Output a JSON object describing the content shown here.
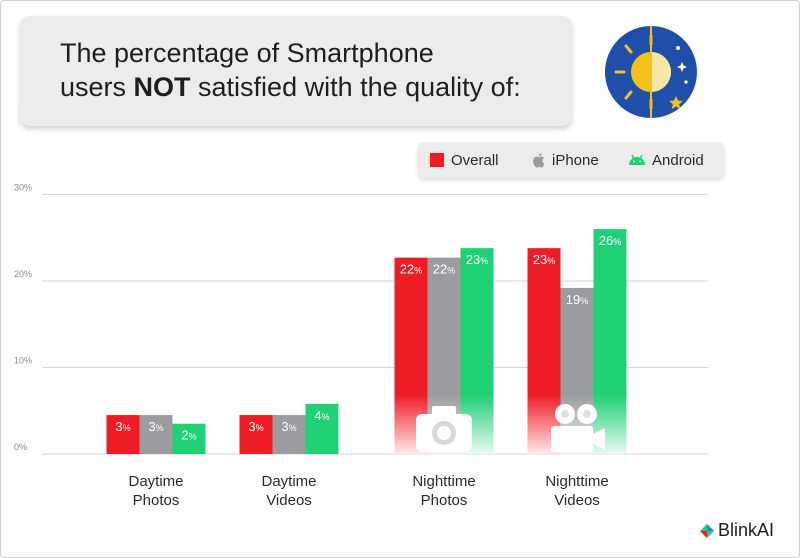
{
  "title": {
    "line1": "The percentage of Smartphone",
    "line2_bold": "NOT",
    "line2_pre": "users ",
    "line2_post": " satisfied with the quality of:"
  },
  "legend": [
    {
      "label": "Overall",
      "color": "#ee1c25",
      "icon": "square"
    },
    {
      "label": "iPhone",
      "color": "#9a9c9f",
      "icon": "apple-icon"
    },
    {
      "label": "Android",
      "color": "#20d075",
      "icon": "android-icon"
    }
  ],
  "chart_data": {
    "type": "bar",
    "categories": [
      "Daytime Photos",
      "Daytime Videos",
      "Nighttime Photos",
      "Nighttime Videos"
    ],
    "category_lines": [
      [
        "Daytime",
        "Photos"
      ],
      [
        "Daytime",
        "Videos"
      ],
      [
        "Nighttime",
        "Photos"
      ],
      [
        "Nighttime",
        "Videos"
      ]
    ],
    "series": [
      {
        "name": "Overall",
        "values": [
          3,
          3,
          22,
          23
        ],
        "color": "#ee1c25"
      },
      {
        "name": "iPhone",
        "values": [
          3,
          3,
          22,
          19
        ],
        "color": "#9a9c9f"
      },
      {
        "name": "Android",
        "values": [
          2,
          4,
          23,
          26
        ],
        "color": "#20d075"
      }
    ],
    "bar_heights": [
      [
        4.5,
        4.5,
        22.7,
        23.8
      ],
      [
        4.5,
        4.5,
        22.7,
        19.2
      ],
      [
        3.5,
        5.8,
        23.8,
        26.0
      ]
    ],
    "ylim": [
      0,
      30
    ],
    "yticks": [
      "0%",
      "10%",
      "20%",
      "30%"
    ],
    "data_label_suffix": "%",
    "category_icons": [
      "",
      "",
      "camera-icon",
      "video-camera-icon"
    ],
    "grid": true
  },
  "brand": {
    "name": "BlinkAI"
  }
}
